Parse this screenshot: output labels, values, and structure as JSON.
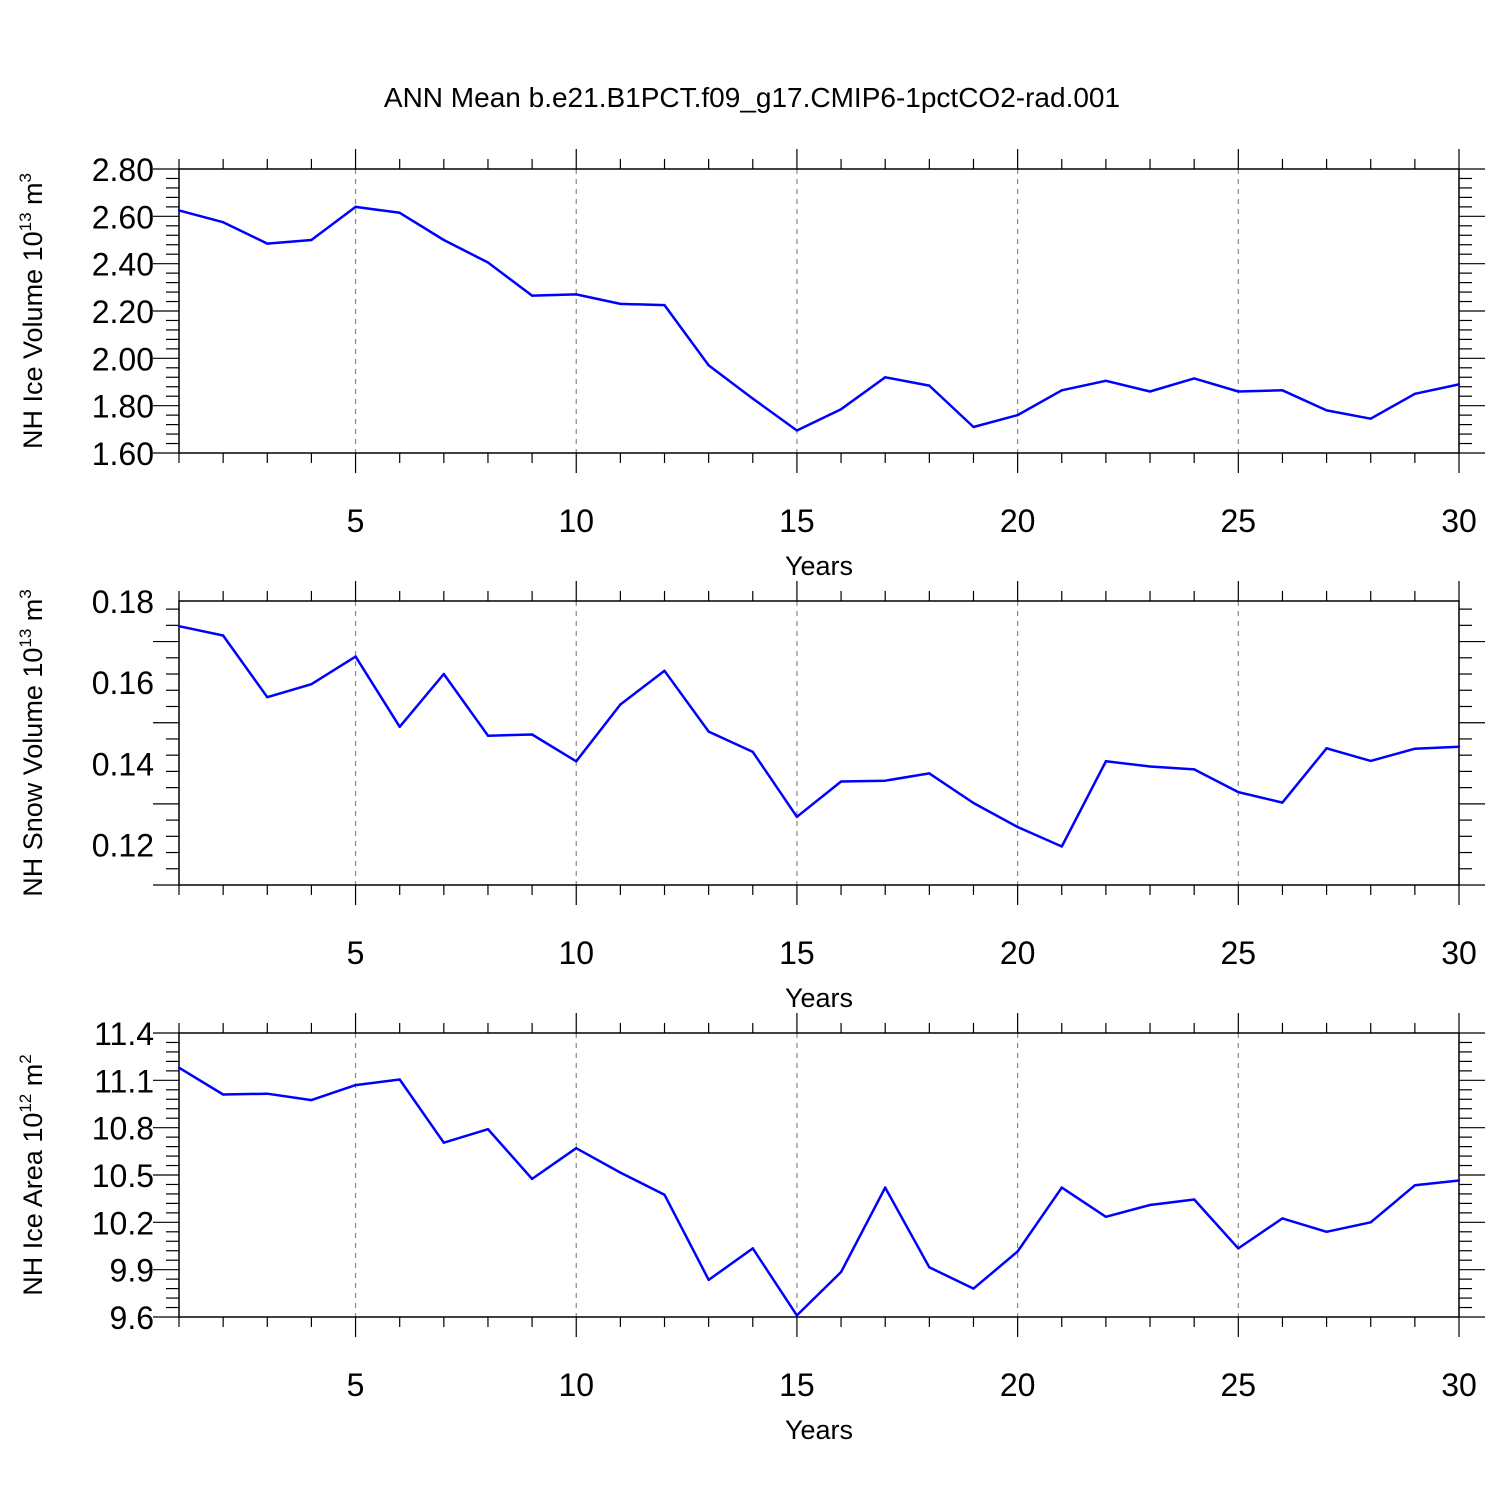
{
  "title": "ANN Mean b.e21.B1PCT.f09_g17.CMIP6-1pctCO2-rad.001",
  "line_color": "#0000ff",
  "chart_data": [
    {
      "type": "line",
      "ylabel": "NH Ice Volume 10",
      "ylabel_exp": "13",
      "ylabel_unit": "m",
      "ylabel_unit_exp": "3",
      "xlabel": "Years",
      "xlim": [
        1,
        30
      ],
      "ylim": [
        1.6,
        2.8
      ],
      "x_ticks": [
        5,
        10,
        15,
        20,
        25,
        30
      ],
      "y_ticks": [
        "1.60",
        "1.80",
        "2.00",
        "2.20",
        "2.40",
        "2.60",
        "2.80"
      ],
      "y_tick_values": [
        1.6,
        1.8,
        2.0,
        2.2,
        2.4,
        2.6,
        2.8
      ],
      "x": [
        1,
        2,
        3,
        4,
        5,
        6,
        7,
        8,
        9,
        10,
        11,
        12,
        13,
        14,
        15,
        16,
        17,
        18,
        19,
        20,
        21,
        22,
        23,
        24,
        25,
        26,
        27,
        28,
        29,
        30
      ],
      "values": [
        2.625,
        2.575,
        2.485,
        2.5,
        2.64,
        2.615,
        2.5,
        2.405,
        2.265,
        2.27,
        2.23,
        2.225,
        1.97,
        1.83,
        1.695,
        1.785,
        1.92,
        1.885,
        1.71,
        1.76,
        1.865,
        1.905,
        1.86,
        1.915,
        1.86,
        1.865,
        1.78,
        1.745,
        1.85,
        1.89
      ],
      "grid": "vertical dashed at major x ticks"
    },
    {
      "type": "line",
      "ylabel": "NH Snow Volume 10",
      "ylabel_exp": "13",
      "ylabel_unit": "m",
      "ylabel_unit_exp": "3",
      "xlabel": "Years",
      "xlim": [
        1,
        30
      ],
      "ylim": [
        0.11,
        0.18
      ],
      "x_ticks": [
        5,
        10,
        15,
        20,
        25,
        30
      ],
      "y_ticks": [
        "0.12",
        "0.14",
        "0.16",
        "0.18"
      ],
      "y_tick_values": [
        0.12,
        0.14,
        0.16,
        0.18
      ],
      "x": [
        1,
        2,
        3,
        4,
        5,
        6,
        7,
        8,
        9,
        10,
        11,
        12,
        13,
        14,
        15,
        16,
        17,
        18,
        19,
        20,
        21,
        22,
        23,
        24,
        25,
        26,
        27,
        28,
        29,
        30
      ],
      "values": [
        0.1738,
        0.1715,
        0.1563,
        0.1595,
        0.1663,
        0.149,
        0.162,
        0.1468,
        0.1471,
        0.1405,
        0.1545,
        0.1628,
        0.1478,
        0.1428,
        0.1268,
        0.1355,
        0.1357,
        0.1375,
        0.1302,
        0.1243,
        0.1195,
        0.1405,
        0.1392,
        0.1385,
        0.1329,
        0.1303,
        0.1437,
        0.1406,
        0.1436,
        0.1441
      ],
      "grid": "vertical dashed at major x ticks"
    },
    {
      "type": "line",
      "ylabel": "NH Ice Area 10",
      "ylabel_exp": "12",
      "ylabel_unit": "m",
      "ylabel_unit_exp": "2",
      "xlabel": "Years",
      "xlim": [
        1,
        30
      ],
      "ylim": [
        9.6,
        11.4
      ],
      "x_ticks": [
        5,
        10,
        15,
        20,
        25,
        30
      ],
      "y_ticks": [
        "9.6",
        "9.9",
        "10.2",
        "10.5",
        "10.8",
        "11.1",
        "11.4"
      ],
      "y_tick_values": [
        9.6,
        9.9,
        10.2,
        10.5,
        10.8,
        11.1,
        11.4
      ],
      "x": [
        1,
        2,
        3,
        4,
        5,
        6,
        7,
        8,
        9,
        10,
        11,
        12,
        13,
        14,
        15,
        16,
        17,
        18,
        19,
        20,
        21,
        22,
        23,
        24,
        25,
        26,
        27,
        28,
        29,
        30
      ],
      "values": [
        11.18,
        11.01,
        11.015,
        10.975,
        11.07,
        11.105,
        10.705,
        10.79,
        10.475,
        10.67,
        10.515,
        10.375,
        9.835,
        10.035,
        9.61,
        9.885,
        10.42,
        9.915,
        9.78,
        10.015,
        10.42,
        10.235,
        10.31,
        10.345,
        10.035,
        10.225,
        10.14,
        10.2,
        10.435,
        10.465
      ],
      "grid": "vertical dashed at major x ticks"
    }
  ]
}
